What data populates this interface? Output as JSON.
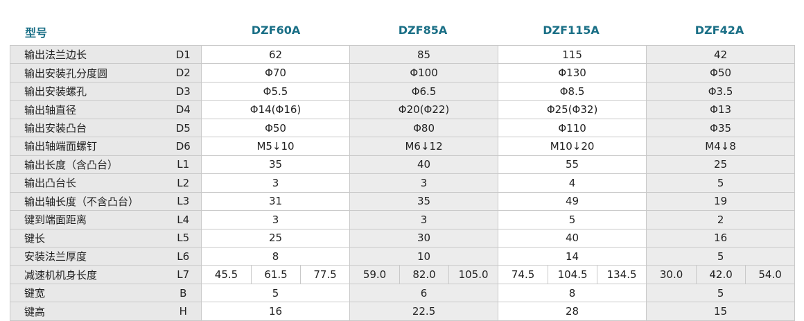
{
  "header": {
    "model_label": "型号",
    "models": [
      "DZF60A",
      "DZF85A",
      "DZF115A",
      "DZF42A"
    ]
  },
  "rows": [
    {
      "name": "输出法兰边长",
      "code": "D1",
      "values": [
        "62",
        "85",
        "115",
        "42"
      ]
    },
    {
      "name": "输出安装孔分度圆",
      "code": "D2",
      "values": [
        "Φ70",
        "Φ100",
        "Φ130",
        "Φ50"
      ]
    },
    {
      "name": "输出安装螺孔",
      "code": "D3",
      "values": [
        "Φ5.5",
        "Φ6.5",
        "Φ8.5",
        "Φ3.5"
      ]
    },
    {
      "name": "输出轴直径",
      "code": "D4",
      "values": [
        "Φ14(Φ16)",
        "Φ20(Φ22)",
        "Φ25(Φ32)",
        "Φ13"
      ]
    },
    {
      "name": "输出安装凸台",
      "code": "D5",
      "values": [
        "Φ50",
        "Φ80",
        "Φ110",
        "Φ35"
      ]
    },
    {
      "name": "输出轴端面螺钉",
      "code": "D6",
      "values": [
        "M5↓10",
        "M6↓12",
        "M10↓20",
        "M4↓8"
      ]
    },
    {
      "name": "输出长度（含凸台）",
      "code": "L1",
      "values": [
        "35",
        "40",
        "55",
        "25"
      ]
    },
    {
      "name": "输出凸台长",
      "code": "L2",
      "values": [
        "3",
        "3",
        "4",
        "5"
      ]
    },
    {
      "name": "输出轴长度（不含凸台）",
      "code": "L3",
      "values": [
        "31",
        "35",
        "49",
        "19"
      ]
    },
    {
      "name": "键到端面距离",
      "code": "L4",
      "values": [
        "3",
        "3",
        "5",
        "2"
      ]
    },
    {
      "name": "键长",
      "code": "L5",
      "values": [
        "25",
        "30",
        "40",
        "16"
      ]
    },
    {
      "name": "安装法兰厚度",
      "code": "L6",
      "values": [
        "8",
        "10",
        "14",
        "5"
      ]
    },
    {
      "name": "减速机机身长度",
      "code": "L7",
      "split": [
        [
          "45.5",
          "61.5",
          "77.5"
        ],
        [
          "59.0",
          "82.0",
          "105.0"
        ],
        [
          "74.5",
          "104.5",
          "134.5"
        ],
        [
          "30.0",
          "42.0",
          "54.0"
        ]
      ]
    },
    {
      "name": "键宽",
      "code": "B",
      "values": [
        "5",
        "6",
        "8",
        "5"
      ]
    },
    {
      "name": "键高",
      "code": "H",
      "values": [
        "16",
        "22.5",
        "28",
        "15"
      ]
    }
  ]
}
